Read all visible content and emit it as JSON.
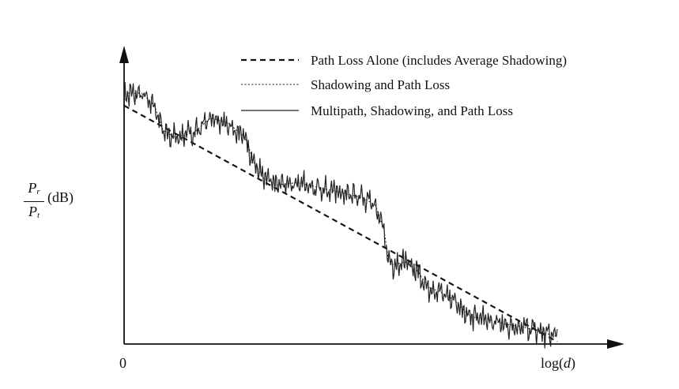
{
  "chart_data": {
    "type": "line",
    "title": "",
    "xlabel_prefix": "log(",
    "xlabel_var": "d",
    "xlabel_suffix": ")",
    "ylabel_num": "P",
    "ylabel_num_sub": "r",
    "ylabel_den": "P",
    "ylabel_den_sub": "t",
    "ylabel_unit": "(dB)",
    "x_origin_label": "0",
    "xlim": [
      0,
      1
    ],
    "ylim": [
      0,
      1
    ],
    "grid": false,
    "legend_position": "top-right",
    "series": [
      {
        "name": "Path Loss Alone (includes Average Shadowing)",
        "style": "dashed",
        "x": [
          0.0,
          1.0
        ],
        "y": [
          0.95,
          0.0
        ]
      },
      {
        "name": "Shadowing and Path Loss",
        "style": "dotted",
        "x": [
          0.0,
          0.04,
          0.07,
          0.09,
          0.12,
          0.16,
          0.2,
          0.24,
          0.28,
          0.3,
          0.32,
          0.35,
          0.4,
          0.45,
          0.5,
          0.55,
          0.58,
          0.6,
          0.61,
          0.62,
          0.65,
          0.68,
          0.7,
          0.73,
          0.76,
          0.8,
          0.84,
          0.88,
          0.92,
          0.96,
          1.0
        ],
        "y": [
          1.0,
          1.0,
          0.95,
          0.85,
          0.82,
          0.84,
          0.9,
          0.88,
          0.82,
          0.72,
          0.66,
          0.63,
          0.64,
          0.62,
          0.6,
          0.58,
          0.55,
          0.45,
          0.33,
          0.31,
          0.32,
          0.28,
          0.22,
          0.2,
          0.17,
          0.1,
          0.09,
          0.07,
          0.06,
          0.04,
          0.02
        ]
      },
      {
        "name": "Multipath, Shadowing, and Path Loss",
        "style": "solid",
        "x": [
          0.0,
          0.04,
          0.07,
          0.09,
          0.12,
          0.16,
          0.2,
          0.24,
          0.28,
          0.3,
          0.32,
          0.35,
          0.4,
          0.45,
          0.5,
          0.55,
          0.58,
          0.6,
          0.61,
          0.62,
          0.65,
          0.68,
          0.7,
          0.73,
          0.76,
          0.8,
          0.84,
          0.88,
          0.92,
          0.96,
          1.0
        ],
        "y": [
          1.0,
          1.0,
          0.95,
          0.85,
          0.82,
          0.84,
          0.9,
          0.88,
          0.82,
          0.72,
          0.66,
          0.63,
          0.64,
          0.62,
          0.6,
          0.58,
          0.55,
          0.45,
          0.33,
          0.31,
          0.32,
          0.28,
          0.22,
          0.2,
          0.17,
          0.1,
          0.09,
          0.07,
          0.06,
          0.04,
          0.02
        ],
        "fluctuation_amplitude": 0.05
      }
    ]
  }
}
